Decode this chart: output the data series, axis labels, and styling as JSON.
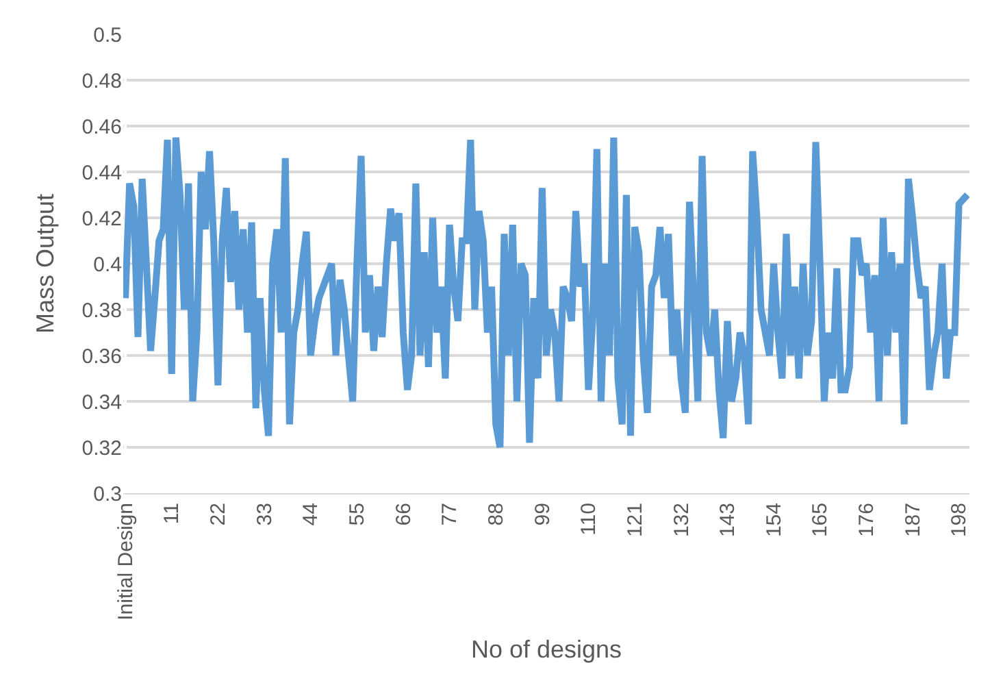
{
  "chart_data": {
    "type": "line",
    "xlabel": "No of designs",
    "ylabel": "Mass Output",
    "categories": [
      "Initial Design",
      null,
      null,
      null,
      null,
      null,
      null,
      null,
      null,
      null,
      null,
      "11",
      null,
      null,
      null,
      null,
      null,
      null,
      null,
      null,
      null,
      null,
      "22",
      null,
      null,
      null,
      null,
      null,
      null,
      null,
      null,
      null,
      null,
      "33",
      null,
      null,
      null,
      null,
      null,
      null,
      null,
      null,
      null,
      null,
      "44",
      null,
      null,
      null,
      null,
      null,
      null,
      null,
      null,
      null,
      null,
      "55",
      null,
      null,
      null,
      null,
      null,
      null,
      null,
      null,
      null,
      null,
      "66",
      null,
      null,
      null,
      null,
      null,
      null,
      null,
      null,
      null,
      null,
      "77",
      null,
      null,
      null,
      null,
      null,
      null,
      null,
      null,
      null,
      null,
      "88",
      null,
      null,
      null,
      null,
      null,
      null,
      null,
      null,
      null,
      null,
      "99",
      null,
      null,
      null,
      null,
      null,
      null,
      null,
      null,
      null,
      null,
      "110",
      null,
      null,
      null,
      null,
      null,
      null,
      null,
      null,
      null,
      null,
      "121",
      null,
      null,
      null,
      null,
      null,
      null,
      null,
      null,
      null,
      null,
      "132",
      null,
      null,
      null,
      null,
      null,
      null,
      null,
      null,
      null,
      null,
      "143",
      null,
      null,
      null,
      null,
      null,
      null,
      null,
      null,
      null,
      null,
      "154",
      null,
      null,
      null,
      null,
      null,
      null,
      null,
      null,
      null,
      null,
      "165",
      null,
      null,
      null,
      null,
      null,
      null,
      null,
      null,
      null,
      null,
      "176",
      null,
      null,
      null,
      null,
      null,
      null,
      null,
      null,
      null,
      null,
      "187",
      null,
      null,
      null,
      null,
      null,
      null,
      null,
      null,
      null,
      null,
      "198",
      null,
      null
    ],
    "series": [
      {
        "color": "#5b9bd5",
        "values": [
          0.385,
          0.435,
          0.425,
          0.368,
          0.437,
          0.4,
          0.362,
          0.385,
          0.41,
          0.415,
          0.454,
          0.352,
          0.455,
          0.43,
          0.38,
          0.435,
          0.34,
          0.37,
          0.44,
          0.415,
          0.449,
          0.41,
          0.347,
          0.41,
          0.433,
          0.392,
          0.423,
          0.38,
          0.415,
          0.37,
          0.418,
          0.337,
          0.385,
          0.345,
          0.325,
          0.4,
          0.415,
          0.37,
          0.446,
          0.33,
          0.37,
          0.38,
          0.4,
          0.414,
          0.36,
          0.375,
          0.385,
          0.39,
          0.395,
          0.4,
          0.36,
          0.393,
          0.38,
          0.36,
          0.34,
          0.4,
          0.447,
          0.37,
          0.395,
          0.362,
          0.39,
          0.368,
          0.4,
          0.424,
          0.41,
          0.422,
          0.37,
          0.345,
          0.36,
          0.435,
          0.36,
          0.405,
          0.355,
          0.42,
          0.37,
          0.39,
          0.35,
          0.417,
          0.39,
          0.375,
          0.41,
          0.41,
          0.454,
          0.38,
          0.423,
          0.41,
          0.37,
          0.39,
          0.33,
          0.32,
          0.413,
          0.36,
          0.417,
          0.34,
          0.4,
          0.395,
          0.322,
          0.385,
          0.35,
          0.433,
          0.36,
          0.38,
          0.37,
          0.34,
          0.39,
          0.385,
          0.375,
          0.423,
          0.39,
          0.4,
          0.345,
          0.375,
          0.45,
          0.34,
          0.4,
          0.36,
          0.455,
          0.35,
          0.33,
          0.43,
          0.325,
          0.416,
          0.405,
          0.36,
          0.335,
          0.39,
          0.395,
          0.416,
          0.385,
          0.413,
          0.36,
          0.38,
          0.35,
          0.335,
          0.427,
          0.385,
          0.34,
          0.447,
          0.37,
          0.36,
          0.38,
          0.345,
          0.324,
          0.375,
          0.34,
          0.35,
          0.37,
          0.36,
          0.33,
          0.449,
          0.42,
          0.38,
          0.37,
          0.36,
          0.4,
          0.37,
          0.35,
          0.413,
          0.36,
          0.39,
          0.35,
          0.4,
          0.36,
          0.375,
          0.453,
          0.4,
          0.34,
          0.37,
          0.35,
          0.398,
          0.345,
          0.345,
          0.355,
          0.41,
          0.41,
          0.395,
          0.4,
          0.37,
          0.395,
          0.34,
          0.42,
          0.36,
          0.405,
          0.37,
          0.4,
          0.33,
          0.437,
          0.42,
          0.4,
          0.385,
          0.39,
          0.345,
          0.36,
          0.37,
          0.4,
          0.35,
          0.37,
          0.37,
          0.426,
          0.428,
          0.43
        ]
      }
    ],
    "ylim": [
      0.3,
      0.5
    ],
    "yticks": [
      0.3,
      0.32,
      0.34,
      0.36,
      0.38,
      0.4,
      0.42,
      0.44,
      0.46,
      0.48,
      0.5
    ],
    "grid": "y",
    "marker": "none",
    "line_style": "solid"
  }
}
